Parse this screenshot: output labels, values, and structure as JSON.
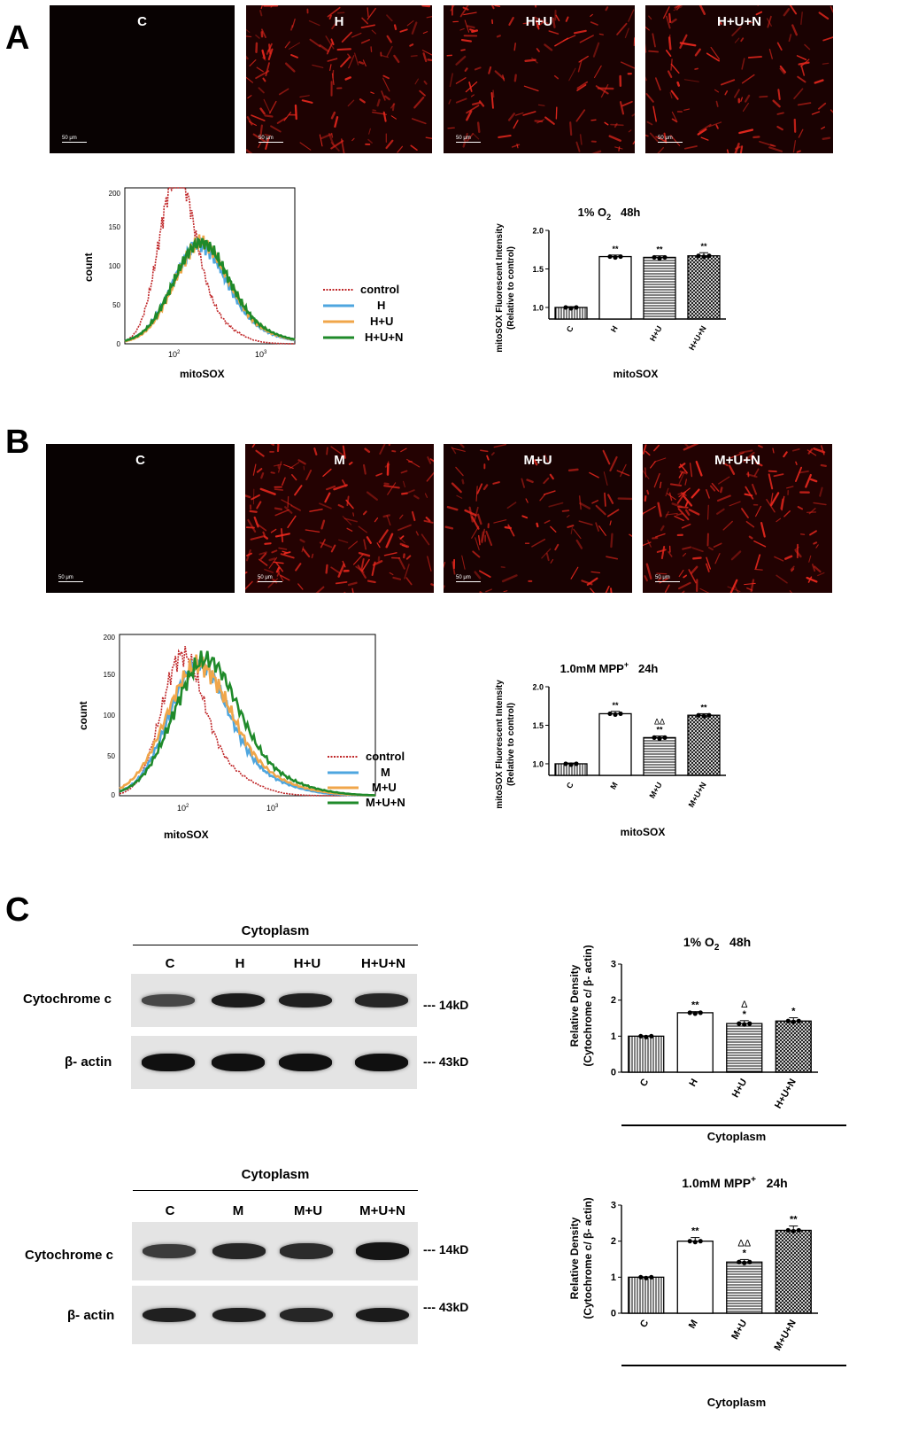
{
  "panels": {
    "A": "A",
    "B": "B",
    "C": "C"
  },
  "colors": {
    "control": "#c0282a",
    "group1": "#4ea6df",
    "group2": "#f0a64a",
    "group3": "#1f8a2a"
  },
  "panel_a": {
    "micrographs": [
      {
        "label": "C",
        "scale": "50 μm",
        "intensity": 0.0
      },
      {
        "label": "H",
        "scale": "50 μm",
        "intensity": 0.55
      },
      {
        "label": "H+U",
        "scale": "50 μm",
        "intensity": 0.45
      },
      {
        "label": "H+U+N",
        "scale": "50 μm",
        "intensity": 0.45
      }
    ],
    "flow": {
      "xlabel": "mitoSOX",
      "ylabel": "count",
      "yticks": [
        "0",
        "50",
        "100",
        "150",
        "200"
      ],
      "xtick1": "10",
      "xtick1_exp": "2",
      "xtick2": "10",
      "xtick2_exp": "3",
      "legend": [
        "control",
        "H",
        "H+U",
        "H+U+N"
      ]
    },
    "bar": {
      "title_pre": "1% O",
      "title_sub": "2",
      "title_post": "   48h",
      "ylabel1": "mitoSOX Fluorescent Intensity",
      "ylabel2": "(Relative to control)",
      "xlabel": "mitoSOX",
      "yticks": [
        "1.0",
        "1.5",
        "2.0"
      ]
    }
  },
  "panel_b": {
    "micrographs": [
      {
        "label": "C",
        "scale": "50 μm",
        "intensity": 0.0
      },
      {
        "label": "M",
        "scale": "50 μm",
        "intensity": 0.7
      },
      {
        "label": "M+U",
        "scale": "50 μm",
        "intensity": 0.4
      },
      {
        "label": "M+U+N",
        "scale": "50 μm",
        "intensity": 0.65
      }
    ],
    "flow": {
      "xlabel": "mitoSOX",
      "ylabel": "count",
      "yticks": [
        "0",
        "50",
        "100",
        "150",
        "200"
      ],
      "xtick1": "10",
      "xtick1_exp": "2",
      "xtick2": "10",
      "xtick2_exp": "3",
      "legend": [
        "control",
        "M",
        "M+U",
        "M+U+N"
      ]
    },
    "bar": {
      "title_pre": "1.0mM MPP",
      "title_sup": "+",
      "title_post": "   24h",
      "ylabel1": "mitoSOX Fluorescent Intensity",
      "ylabel2": "(Relative to control)",
      "xlabel": "mitoSOX",
      "yticks": [
        "1.0",
        "1.5",
        "2.0"
      ]
    }
  },
  "panel_c": {
    "blot1": {
      "header": "Cytoplasm",
      "lanes": [
        "C",
        "H",
        "H+U",
        "H+U+N"
      ],
      "row1": "Cytochrome c",
      "row1_kd": "--- 14kD",
      "row2": "β- actin",
      "row2_kd": "--- 43kD",
      "row1_intensity": [
        0.45,
        0.85,
        0.8,
        0.75
      ],
      "row2_intensity": [
        0.95,
        0.95,
        0.95,
        0.95
      ]
    },
    "blot2": {
      "header": "Cytoplasm",
      "lanes": [
        "C",
        "M",
        "M+U",
        "M+U+N"
      ],
      "row1": "Cytochrome c",
      "row1_kd": "--- 14kD",
      "row2": "β- actin",
      "row2_kd": "--- 43kD",
      "row1_intensity": [
        0.55,
        0.75,
        0.7,
        0.9
      ],
      "row2_intensity": [
        0.8,
        0.8,
        0.75,
        0.85
      ]
    },
    "bar1": {
      "title_pre": "1% O",
      "title_sub": "2",
      "title_post": "   48h",
      "ylabel1": "Relative Density",
      "ylabel2": "(Cytochrome c/ β- actin)",
      "xlabel": "Cytoplasm",
      "yticks": [
        "0",
        "1",
        "2",
        "3"
      ]
    },
    "bar2": {
      "title_pre": "1.0mM MPP",
      "title_sup": "+",
      "title_post": "   24h",
      "ylabel1": "Relative Density",
      "ylabel2": "(Cytochrome c/ β- actin)",
      "xlabel": "Cytoplasm",
      "yticks": [
        "0",
        "1",
        "2",
        "3"
      ]
    }
  },
  "chart_data": [
    {
      "type": "bar",
      "id": "A-bar",
      "categories": [
        "C",
        "H",
        "H+U",
        "H+U+N"
      ],
      "values": [
        1.0,
        1.66,
        1.65,
        1.67
      ],
      "errors": [
        0.01,
        0.02,
        0.02,
        0.04
      ],
      "annotations": [
        "",
        "**",
        "**",
        "**"
      ],
      "annotations2": [
        "",
        "",
        "",
        ""
      ],
      "ylim": [
        0.85,
        2.0
      ]
    },
    {
      "type": "bar",
      "id": "B-bar",
      "categories": [
        "C",
        "M",
        "M+U",
        "M+U+N"
      ],
      "values": [
        1.0,
        1.65,
        1.34,
        1.63
      ],
      "errors": [
        0.01,
        0.03,
        0.02,
        0.02
      ],
      "annotations": [
        "",
        "**",
        "**",
        "**"
      ],
      "annotations2": [
        "",
        "",
        "ΔΔ",
        ""
      ],
      "ylim": [
        0.85,
        2.0
      ]
    },
    {
      "type": "bar",
      "id": "C-bar1",
      "categories": [
        "C",
        "H",
        "H+U",
        "H+U+N"
      ],
      "values": [
        1.0,
        1.65,
        1.35,
        1.42
      ],
      "errors": [
        0.01,
        0.03,
        0.08,
        0.09
      ],
      "annotations": [
        "",
        "**",
        "*",
        "*"
      ],
      "annotations2": [
        "",
        "",
        "Δ",
        ""
      ],
      "ylim": [
        0,
        3
      ]
    },
    {
      "type": "bar",
      "id": "C-bar2",
      "categories": [
        "C",
        "M",
        "M+U",
        "M+U+N"
      ],
      "values": [
        1.0,
        2.0,
        1.42,
        2.3
      ],
      "errors": [
        0.01,
        0.1,
        0.07,
        0.12
      ],
      "annotations": [
        "",
        "**",
        "*",
        "**"
      ],
      "annotations2": [
        "",
        "",
        "ΔΔ",
        ""
      ],
      "ylim": [
        0,
        3
      ]
    }
  ]
}
